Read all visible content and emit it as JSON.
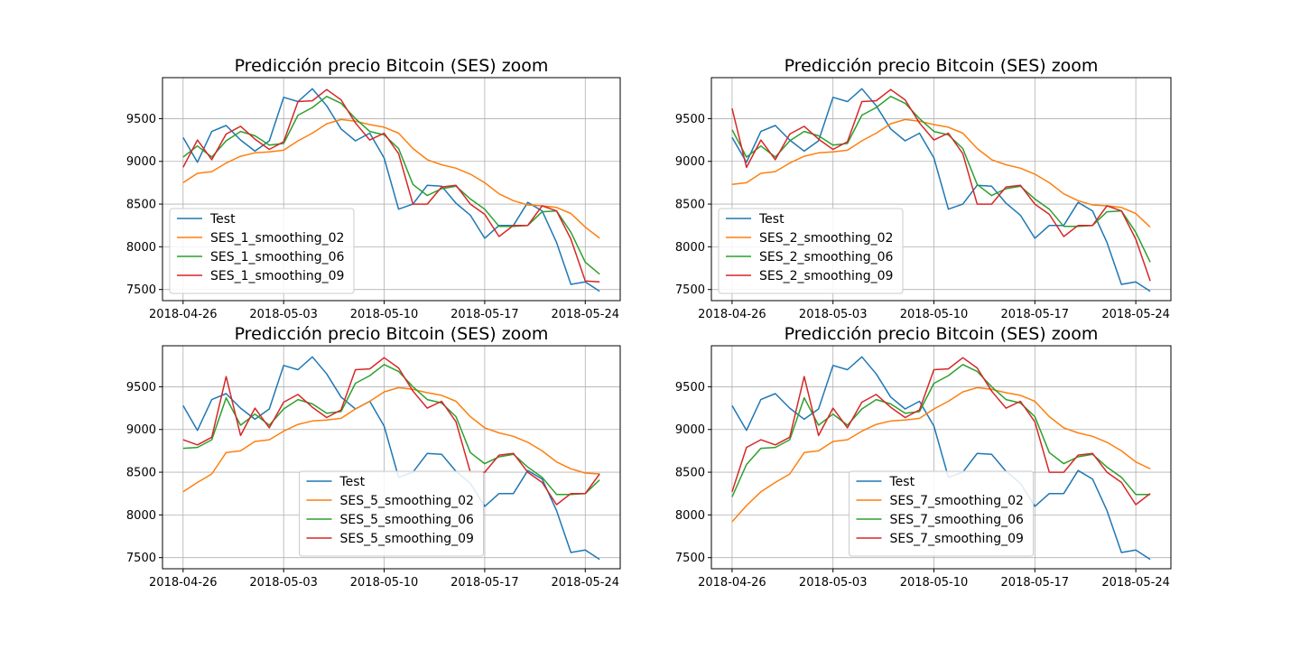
{
  "colors": {
    "test": "#1f77b4",
    "smoothing_02": "#ff7f0e",
    "smoothing_06": "#2ca02c",
    "smoothing_09": "#d62728"
  },
  "chart_data": [
    {
      "type": "line",
      "title": "Predicción precio Bitcoin (SES) zoom",
      "xlabel": "",
      "ylabel": "",
      "grid": true,
      "legend_position": "lower-left",
      "x_ticks": [
        "2018-04-26",
        "2018-05-03",
        "2018-05-10",
        "2018-05-17",
        "2018-05-24"
      ],
      "y_ticks": [
        7500,
        8000,
        8500,
        9000,
        9500
      ],
      "ylim": [
        7370,
        9980
      ],
      "x": [
        "2018-04-26",
        "2018-04-27",
        "2018-04-28",
        "2018-04-29",
        "2018-04-30",
        "2018-05-01",
        "2018-05-02",
        "2018-05-03",
        "2018-05-04",
        "2018-05-05",
        "2018-05-06",
        "2018-05-07",
        "2018-05-08",
        "2018-05-09",
        "2018-05-10",
        "2018-05-11",
        "2018-05-12",
        "2018-05-13",
        "2018-05-14",
        "2018-05-15",
        "2018-05-16",
        "2018-05-17",
        "2018-05-18",
        "2018-05-19",
        "2018-05-20",
        "2018-05-21",
        "2018-05-22",
        "2018-05-23",
        "2018-05-24",
        "2018-05-25"
      ],
      "series": [
        {
          "name": "Test",
          "values": [
            9280,
            8990,
            9350,
            9420,
            9250,
            9120,
            9240,
            9750,
            9700,
            9850,
            9650,
            9380,
            9240,
            9330,
            9040,
            8440,
            8500,
            8720,
            8710,
            8510,
            8370,
            8100,
            8250,
            8250,
            8520,
            8420,
            8050,
            7560,
            7590,
            7480
          ]
        },
        {
          "name": "SES_1_smoothing_02",
          "values": [
            8750,
            8860,
            8880,
            8980,
            9060,
            9100,
            9110,
            9130,
            9240,
            9330,
            9440,
            9490,
            9470,
            9430,
            9400,
            9330,
            9150,
            9020,
            8960,
            8920,
            8850,
            8750,
            8620,
            8540,
            8490,
            8480,
            8460,
            8390,
            8230,
            8100
          ]
        },
        {
          "name": "SES_1_smoothing_06",
          "values": [
            9050,
            9180,
            9050,
            9240,
            9350,
            9300,
            9190,
            9210,
            9540,
            9630,
            9760,
            9680,
            9500,
            9350,
            9310,
            9150,
            8730,
            8600,
            8680,
            8710,
            8560,
            8440,
            8240,
            8240,
            8250,
            8410,
            8420,
            8170,
            7820,
            7680
          ]
        },
        {
          "name": "SES_1_smoothing_09",
          "values": [
            8930,
            9250,
            9020,
            9320,
            9410,
            9260,
            9140,
            9230,
            9700,
            9710,
            9840,
            9720,
            9450,
            9250,
            9330,
            9090,
            8500,
            8500,
            8700,
            8720,
            8500,
            8380,
            8120,
            8250,
            8250,
            8480,
            8420,
            8090,
            7600,
            7590
          ]
        }
      ]
    },
    {
      "type": "line",
      "title": "Predicción precio Bitcoin (SES) zoom",
      "xlabel": "",
      "ylabel": "",
      "grid": true,
      "legend_position": "lower-left",
      "x_ticks": [
        "2018-04-26",
        "2018-05-03",
        "2018-05-10",
        "2018-05-17",
        "2018-05-24"
      ],
      "y_ticks": [
        7500,
        8000,
        8500,
        9000,
        9500
      ],
      "ylim": [
        7370,
        9980
      ],
      "x": [
        "2018-04-26",
        "2018-04-27",
        "2018-04-28",
        "2018-04-29",
        "2018-04-30",
        "2018-05-01",
        "2018-05-02",
        "2018-05-03",
        "2018-05-04",
        "2018-05-05",
        "2018-05-06",
        "2018-05-07",
        "2018-05-08",
        "2018-05-09",
        "2018-05-10",
        "2018-05-11",
        "2018-05-12",
        "2018-05-13",
        "2018-05-14",
        "2018-05-15",
        "2018-05-16",
        "2018-05-17",
        "2018-05-18",
        "2018-05-19",
        "2018-05-20",
        "2018-05-21",
        "2018-05-22",
        "2018-05-23",
        "2018-05-24",
        "2018-05-25"
      ],
      "series": [
        {
          "name": "Test",
          "values": [
            9280,
            8990,
            9350,
            9420,
            9250,
            9120,
            9240,
            9750,
            9700,
            9850,
            9650,
            9380,
            9240,
            9330,
            9040,
            8440,
            8500,
            8720,
            8710,
            8510,
            8370,
            8100,
            8250,
            8250,
            8520,
            8420,
            8050,
            7560,
            7590,
            7480
          ]
        },
        {
          "name": "SES_2_smoothing_02",
          "values": [
            8730,
            8750,
            8860,
            8880,
            8980,
            9060,
            9100,
            9110,
            9130,
            9240,
            9330,
            9440,
            9490,
            9470,
            9430,
            9400,
            9330,
            9150,
            9020,
            8960,
            8920,
            8850,
            8750,
            8620,
            8540,
            8490,
            8480,
            8460,
            8390,
            8230
          ]
        },
        {
          "name": "SES_2_smoothing_06",
          "values": [
            9370,
            9050,
            9180,
            9050,
            9240,
            9350,
            9300,
            9190,
            9210,
            9540,
            9630,
            9760,
            9680,
            9500,
            9350,
            9310,
            9150,
            8730,
            8600,
            8680,
            8710,
            8560,
            8440,
            8240,
            8240,
            8250,
            8410,
            8420,
            8170,
            7820
          ]
        },
        {
          "name": "SES_2_smoothing_09",
          "values": [
            9620,
            8930,
            9250,
            9020,
            9320,
            9410,
            9260,
            9140,
            9230,
            9700,
            9710,
            9840,
            9720,
            9450,
            9250,
            9330,
            9090,
            8500,
            8500,
            8700,
            8720,
            8500,
            8380,
            8120,
            8250,
            8250,
            8480,
            8420,
            8090,
            7600
          ]
        }
      ]
    },
    {
      "type": "line",
      "title": "Predicción precio Bitcoin (SES) zoom",
      "xlabel": "",
      "ylabel": "",
      "grid": true,
      "legend_position": "lower-center",
      "x_ticks": [
        "2018-04-26",
        "2018-05-03",
        "2018-05-10",
        "2018-05-17",
        "2018-05-24"
      ],
      "y_ticks": [
        7500,
        8000,
        8500,
        9000,
        9500
      ],
      "ylim": [
        7370,
        9980
      ],
      "x": [
        "2018-04-26",
        "2018-04-27",
        "2018-04-28",
        "2018-04-29",
        "2018-04-30",
        "2018-05-01",
        "2018-05-02",
        "2018-05-03",
        "2018-05-04",
        "2018-05-05",
        "2018-05-06",
        "2018-05-07",
        "2018-05-08",
        "2018-05-09",
        "2018-05-10",
        "2018-05-11",
        "2018-05-12",
        "2018-05-13",
        "2018-05-14",
        "2018-05-15",
        "2018-05-16",
        "2018-05-17",
        "2018-05-18",
        "2018-05-19",
        "2018-05-20",
        "2018-05-21",
        "2018-05-22",
        "2018-05-23",
        "2018-05-24",
        "2018-05-25"
      ],
      "series": [
        {
          "name": "Test",
          "values": [
            9280,
            8990,
            9350,
            9420,
            9250,
            9120,
            9240,
            9750,
            9700,
            9850,
            9650,
            9380,
            9240,
            9330,
            9040,
            8440,
            8500,
            8720,
            8710,
            8510,
            8370,
            8100,
            8250,
            8250,
            8520,
            8420,
            8050,
            7560,
            7590,
            7480
          ]
        },
        {
          "name": "SES_5_smoothing_02",
          "values": [
            8270,
            8380,
            8480,
            8730,
            8750,
            8860,
            8880,
            8980,
            9060,
            9100,
            9110,
            9130,
            9240,
            9330,
            9440,
            9490,
            9470,
            9430,
            9400,
            9330,
            9150,
            9020,
            8960,
            8920,
            8850,
            8750,
            8620,
            8540,
            8490,
            8480
          ]
        },
        {
          "name": "SES_5_smoothing_06",
          "values": [
            8780,
            8790,
            8880,
            9370,
            9050,
            9180,
            9050,
            9240,
            9350,
            9300,
            9190,
            9210,
            9540,
            9630,
            9760,
            9680,
            9500,
            9350,
            9310,
            9150,
            8730,
            8600,
            8680,
            8710,
            8560,
            8440,
            8240,
            8240,
            8250,
            8410
          ]
        },
        {
          "name": "SES_5_smoothing_09",
          "values": [
            8880,
            8820,
            8910,
            9620,
            8930,
            9250,
            9020,
            9320,
            9410,
            9260,
            9140,
            9230,
            9700,
            9710,
            9840,
            9720,
            9450,
            9250,
            9330,
            9090,
            8500,
            8500,
            8700,
            8720,
            8500,
            8380,
            8120,
            8250,
            8250,
            8480
          ]
        }
      ]
    },
    {
      "type": "line",
      "title": "Predicción precio Bitcoin (SES) zoom",
      "xlabel": "",
      "ylabel": "",
      "grid": true,
      "legend_position": "lower-center",
      "x_ticks": [
        "2018-04-26",
        "2018-05-03",
        "2018-05-10",
        "2018-05-17",
        "2018-05-24"
      ],
      "y_ticks": [
        7500,
        8000,
        8500,
        9000,
        9500
      ],
      "ylim": [
        7370,
        9980
      ],
      "x": [
        "2018-04-26",
        "2018-04-27",
        "2018-04-28",
        "2018-04-29",
        "2018-04-30",
        "2018-05-01",
        "2018-05-02",
        "2018-05-03",
        "2018-05-04",
        "2018-05-05",
        "2018-05-06",
        "2018-05-07",
        "2018-05-08",
        "2018-05-09",
        "2018-05-10",
        "2018-05-11",
        "2018-05-12",
        "2018-05-13",
        "2018-05-14",
        "2018-05-15",
        "2018-05-16",
        "2018-05-17",
        "2018-05-18",
        "2018-05-19",
        "2018-05-20",
        "2018-05-21",
        "2018-05-22",
        "2018-05-23",
        "2018-05-24",
        "2018-05-25"
      ],
      "series": [
        {
          "name": "Test",
          "values": [
            9280,
            8990,
            9350,
            9420,
            9250,
            9120,
            9240,
            9750,
            9700,
            9850,
            9650,
            9380,
            9240,
            9330,
            9040,
            8440,
            8500,
            8720,
            8710,
            8510,
            8370,
            8100,
            8250,
            8250,
            8520,
            8420,
            8050,
            7560,
            7590,
            7480
          ]
        },
        {
          "name": "SES_7_smoothing_02",
          "values": [
            7920,
            8110,
            8270,
            8380,
            8480,
            8730,
            8750,
            8860,
            8880,
            8980,
            9060,
            9100,
            9110,
            9130,
            9240,
            9330,
            9440,
            9490,
            9470,
            9430,
            9400,
            9330,
            9150,
            9020,
            8960,
            8920,
            8850,
            8750,
            8620,
            8540
          ]
        },
        {
          "name": "SES_7_smoothing_06",
          "values": [
            8210,
            8590,
            8780,
            8790,
            8880,
            9370,
            9050,
            9180,
            9050,
            9240,
            9350,
            9300,
            9190,
            9210,
            9540,
            9630,
            9760,
            9680,
            9500,
            9350,
            9310,
            9150,
            8730,
            8600,
            8680,
            8710,
            8560,
            8440,
            8240,
            8240
          ]
        },
        {
          "name": "SES_7_smoothing_09",
          "values": [
            8270,
            8790,
            8880,
            8820,
            8910,
            9620,
            8930,
            9250,
            9020,
            9320,
            9410,
            9260,
            9140,
            9230,
            9700,
            9710,
            9840,
            9720,
            9450,
            9250,
            9330,
            9090,
            8500,
            8500,
            8700,
            8720,
            8500,
            8380,
            8120,
            8250
          ]
        }
      ]
    }
  ]
}
